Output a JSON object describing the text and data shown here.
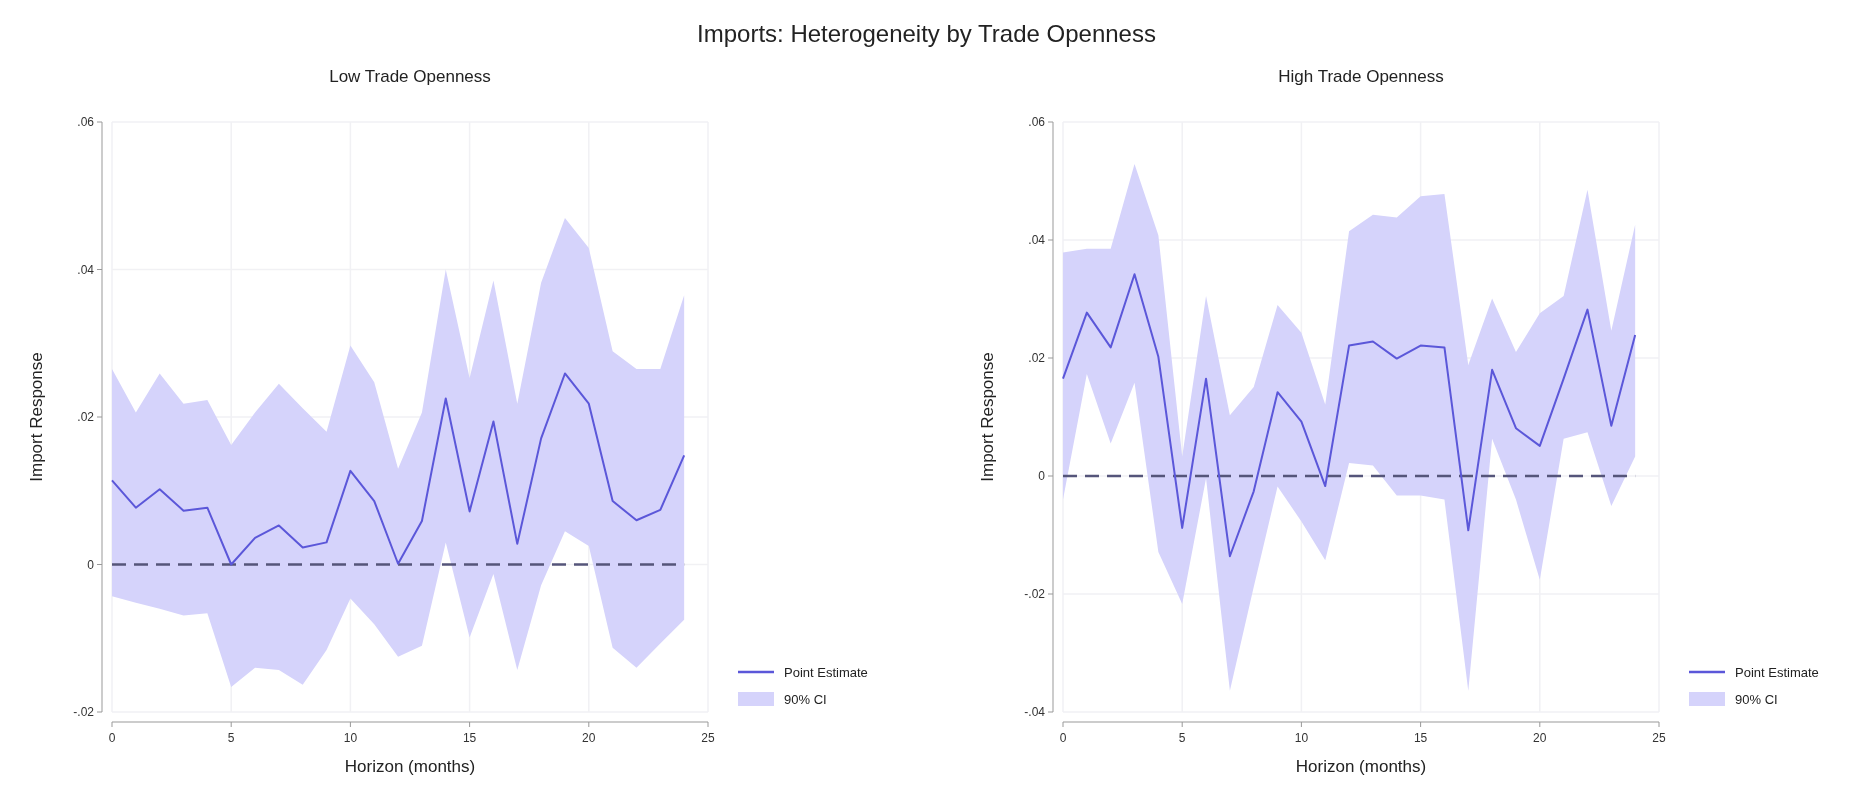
{
  "chart_data": [
    {
      "type": "line",
      "title": "Low Trade Openness",
      "xlabel": "Horizon (months)",
      "ylabel": "Import Response",
      "annotations": [
        "Imports: Heterogeneity by Trade Openness",
        "90% CI"
      ],
      "x": [
        0,
        1,
        2,
        3,
        4,
        5,
        6,
        7,
        8,
        9,
        10,
        11,
        12,
        13,
        14,
        15,
        16,
        17,
        18,
        19,
        20,
        21,
        22,
        23,
        24
      ],
      "series": [
        {
          "name": "Point Estimate",
          "color": "#5b57d9",
          "values": [
            0.0114,
            0.0077,
            0.0102,
            0.0073,
            0.0077,
            0,
            0.0036,
            0.0053,
            0.0023,
            0.003,
            0.0127,
            0.0086,
            0.0001,
            0.0059,
            0.0225,
            0.0072,
            0.0194,
            0.0028,
            0.0171,
            0.0259,
            0.0218,
            0.0086,
            0.006,
            0.0074,
            0.0148
          ],
          "lower": [
            -0.0043,
            -0.0052,
            -0.006,
            -0.0069,
            -0.0066,
            -0.0166,
            -0.014,
            -0.0143,
            -0.0163,
            -0.0116,
            -0.0046,
            -0.0081,
            -0.0125,
            -0.011,
            0.003,
            -0.0099,
            -0.0013,
            -0.0143,
            -0.0028,
            0.0045,
            0.0025,
            -0.0113,
            -0.014,
            -0.0107,
            -0.0075
          ],
          "upper": [
            0.0265,
            0.0206,
            0.0259,
            0.0218,
            0.0223,
            0.0162,
            0.0206,
            0.0245,
            0.0212,
            0.018,
            0.0297,
            0.0247,
            0.013,
            0.0206,
            0.04,
            0.0253,
            0.0385,
            0.0218,
            0.0382,
            0.047,
            0.0429,
            0.0289,
            0.0265,
            0.0265,
            0.0365
          ]
        }
      ],
      "xlim": [
        0,
        25
      ],
      "xticks": [
        0,
        5,
        10,
        15,
        20,
        25
      ],
      "ylim": [
        -0.02,
        0.06
      ],
      "yticks": [
        {
          "value": -0.02,
          "label": "-.02"
        },
        0,
        {
          "value": 0.02,
          "label": ".02"
        },
        {
          "value": 0.04,
          "label": ".04"
        },
        {
          "value": 0.06,
          "label": ".06"
        }
      ],
      "ref_lines": [
        {
          "axis": "y",
          "value": 0,
          "color": "#55557a",
          "line_style": "dashed"
        }
      ],
      "grid": true,
      "legend": "bottom right"
    },
    {
      "type": "line",
      "title": "High Trade Openness",
      "xlabel": "Horizon (months)",
      "ylabel": "Import Response",
      "annotations": [
        "90% CI"
      ],
      "x": [
        0,
        1,
        2,
        3,
        4,
        5,
        6,
        7,
        8,
        9,
        10,
        11,
        12,
        13,
        14,
        15,
        16,
        17,
        18,
        19,
        20,
        21,
        22,
        23,
        24
      ],
      "series": [
        {
          "name": "Point Estimate",
          "color": "#5b57d9",
          "values": [
            0.0165,
            0.0277,
            0.0218,
            0.0342,
            0.0202,
            -0.0088,
            0.0165,
            -0.0136,
            -0.0026,
            0.0142,
            0.0092,
            -0.0017,
            0.0221,
            0.0228,
            0.0199,
            0.0221,
            0.0218,
            -0.0092,
            0.018,
            0.0081,
            0.0051,
            0.0165,
            0.0282,
            0.0085,
            0.0239
          ],
          "lower": [
            -0.004,
            0.0173,
            0.0055,
            0.0158,
            -0.0129,
            -0.0217,
            -0.0004,
            -0.0364,
            -0.0188,
            -0.0018,
            -0.0077,
            -0.0143,
            0.0022,
            0.0018,
            -0.0033,
            -0.0033,
            -0.004,
            -0.0364,
            0.0063,
            -0.004,
            -0.0176,
            0.0063,
            0.0074,
            -0.0051,
            0.0033
          ],
          "upper": [
            0.0379,
            0.0385,
            0.0385,
            0.0529,
            0.0408,
            0.0033,
            0.0305,
            0.0103,
            0.0151,
            0.029,
            0.0243,
            0.0121,
            0.0415,
            0.0443,
            0.0438,
            0.0474,
            0.0478,
            0.0188,
            0.0301,
            0.021,
            0.0276,
            0.0305,
            0.0485,
            0.0246,
            0.0426
          ]
        }
      ],
      "xlim": [
        0,
        25
      ],
      "xticks": [
        0,
        5,
        10,
        15,
        20,
        25
      ],
      "ylim": [
        -0.04,
        0.06
      ],
      "yticks": [
        {
          "value": -0.04,
          "label": "-.04"
        },
        {
          "value": -0.02,
          "label": "-.02"
        },
        0,
        {
          "value": 0.02,
          "label": ".02"
        },
        {
          "value": 0.04,
          "label": ".04"
        },
        {
          "value": 0.06,
          "label": ".06"
        }
      ],
      "ref_lines": [
        {
          "axis": "y",
          "value": 0,
          "color": "#55557a",
          "line_style": "dashed"
        }
      ],
      "grid": true,
      "legend": "bottom right"
    }
  ]
}
